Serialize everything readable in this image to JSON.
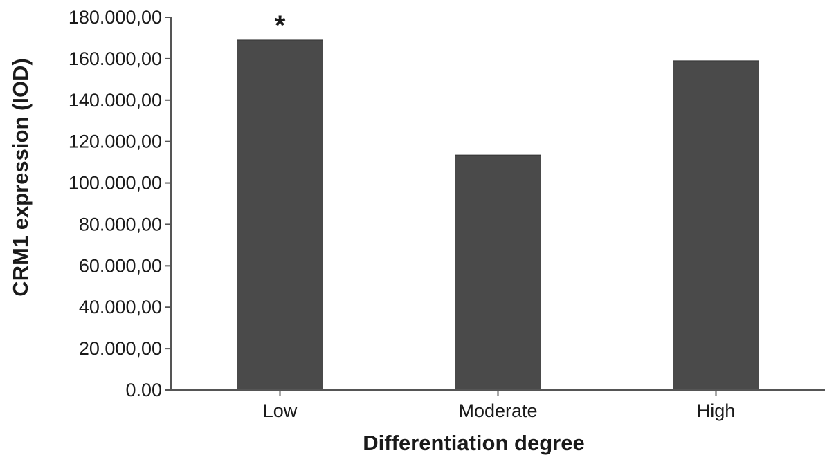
{
  "chart_data": {
    "type": "bar",
    "categories": [
      "Low",
      "Moderate",
      "High"
    ],
    "values": [
      169000,
      113500,
      159000
    ],
    "xlabel": "Differentiation degree",
    "ylabel": "CRM1 expression (IOD)",
    "ylim": [
      0,
      180000
    ],
    "yticks": [
      0,
      20000,
      40000,
      60000,
      80000,
      100000,
      120000,
      140000,
      160000,
      180000
    ],
    "ytick_labels": [
      "0.00",
      "20.000,00",
      "40.000,00",
      "60.000,00",
      "80.000,00",
      "100.000,00",
      "120.000,00",
      "140.000,00",
      "160.000,00",
      "180.000,00"
    ],
    "annotations": [
      {
        "category": "Low",
        "text": "*"
      }
    ],
    "bar_color": "#4a4a4a",
    "grid": false,
    "legend": "none"
  }
}
